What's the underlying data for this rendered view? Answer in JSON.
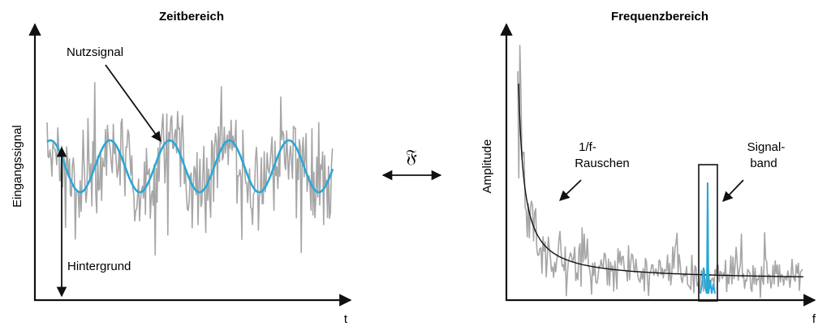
{
  "left_panel": {
    "title": "Zeitbereich",
    "y_axis_label": "Eingangssignal",
    "x_axis_label": "t",
    "annotation_signal": "Nutzsignal",
    "annotation_background": "Hintergrund"
  },
  "right_panel": {
    "title": "Frequenzbereich",
    "y_axis_label": "Amplitude",
    "x_axis_label": "f",
    "annotation_noise_line1": "1/f-",
    "annotation_noise_line2": "Rauschen",
    "annotation_band_line1": "Signal-",
    "annotation_band_line2": "band"
  },
  "transform_symbol": "𝔉",
  "colors": {
    "noise": "#a6a6a6",
    "signal": "#2aa7d6",
    "axis": "#111111",
    "fit_curve": "#111111"
  }
}
